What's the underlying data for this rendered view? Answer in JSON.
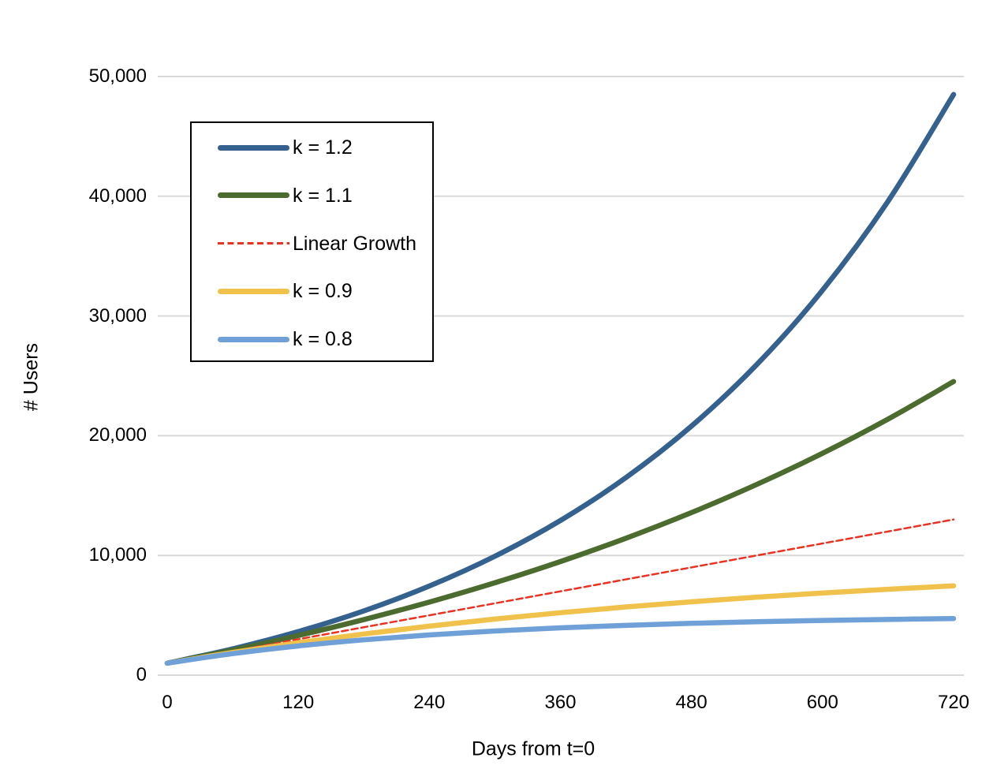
{
  "figure": {
    "background_color": "#ffffff",
    "text_color": "#000000",
    "gridline_color": "#D9D9D9",
    "legend_border_color": "#000000",
    "legend_background_color": "#ffffff"
  },
  "chart_data": {
    "type": "line",
    "title": "",
    "xlabel": "Days from t=0",
    "ylabel": "# Users",
    "grid": "horizontal",
    "legend_position": "upper-left-box",
    "line_smoothing": true,
    "xlim": [
      0,
      720
    ],
    "ylim": [
      0,
      50000
    ],
    "x": [
      0,
      60,
      120,
      180,
      240,
      300,
      360,
      420,
      480,
      540,
      600,
      660,
      720
    ],
    "x_tick_values": [
      0,
      120,
      240,
      360,
      480,
      600,
      720
    ],
    "x_tick_labels": [
      "0",
      "120",
      "240",
      "360",
      "480",
      "600",
      "720"
    ],
    "y_tick_values": [
      0,
      10000,
      20000,
      30000,
      40000,
      50000
    ],
    "y_tick_labels": [
      "0",
      "10,000",
      "20,000",
      "30,000",
      "40,000",
      "50,000"
    ],
    "series": [
      {
        "name": "k = 1.2",
        "color": "#35618F",
        "style": "solid",
        "width": 6.5,
        "values": [
          1000,
          2200,
          3640,
          5368,
          7442,
          9930,
          12916,
          16499,
          20799,
          25959,
          32150,
          39581,
          48497
        ]
      },
      {
        "name": "k = 1.1",
        "color": "#4C6B2E",
        "style": "solid",
        "width": 6.5,
        "values": [
          1000,
          2100,
          3310,
          4641,
          6105,
          7716,
          9487,
          11436,
          13579,
          15937,
          18531,
          21384,
          24523
        ]
      },
      {
        "name": "Linear Growth",
        "color": "#EA3223",
        "style": "dashed",
        "width": 2.5,
        "values": [
          1000,
          2000,
          3000,
          4000,
          5000,
          6000,
          7000,
          8000,
          9000,
          10000,
          11000,
          12000,
          13000
        ]
      },
      {
        "name": "k = 0.9",
        "color": "#F0C24B",
        "style": "solid",
        "width": 6.5,
        "values": [
          1000,
          1900,
          2710,
          3439,
          4095,
          4686,
          5217,
          5695,
          6126,
          6513,
          6862,
          7176,
          7458
        ]
      },
      {
        "name": "k = 0.8",
        "color": "#6FA0D7",
        "style": "solid",
        "width": 6.5,
        "values": [
          1000,
          1800,
          2440,
          2952,
          3362,
          3689,
          3951,
          4161,
          4329,
          4463,
          4571,
          4656,
          4725
        ]
      }
    ]
  }
}
